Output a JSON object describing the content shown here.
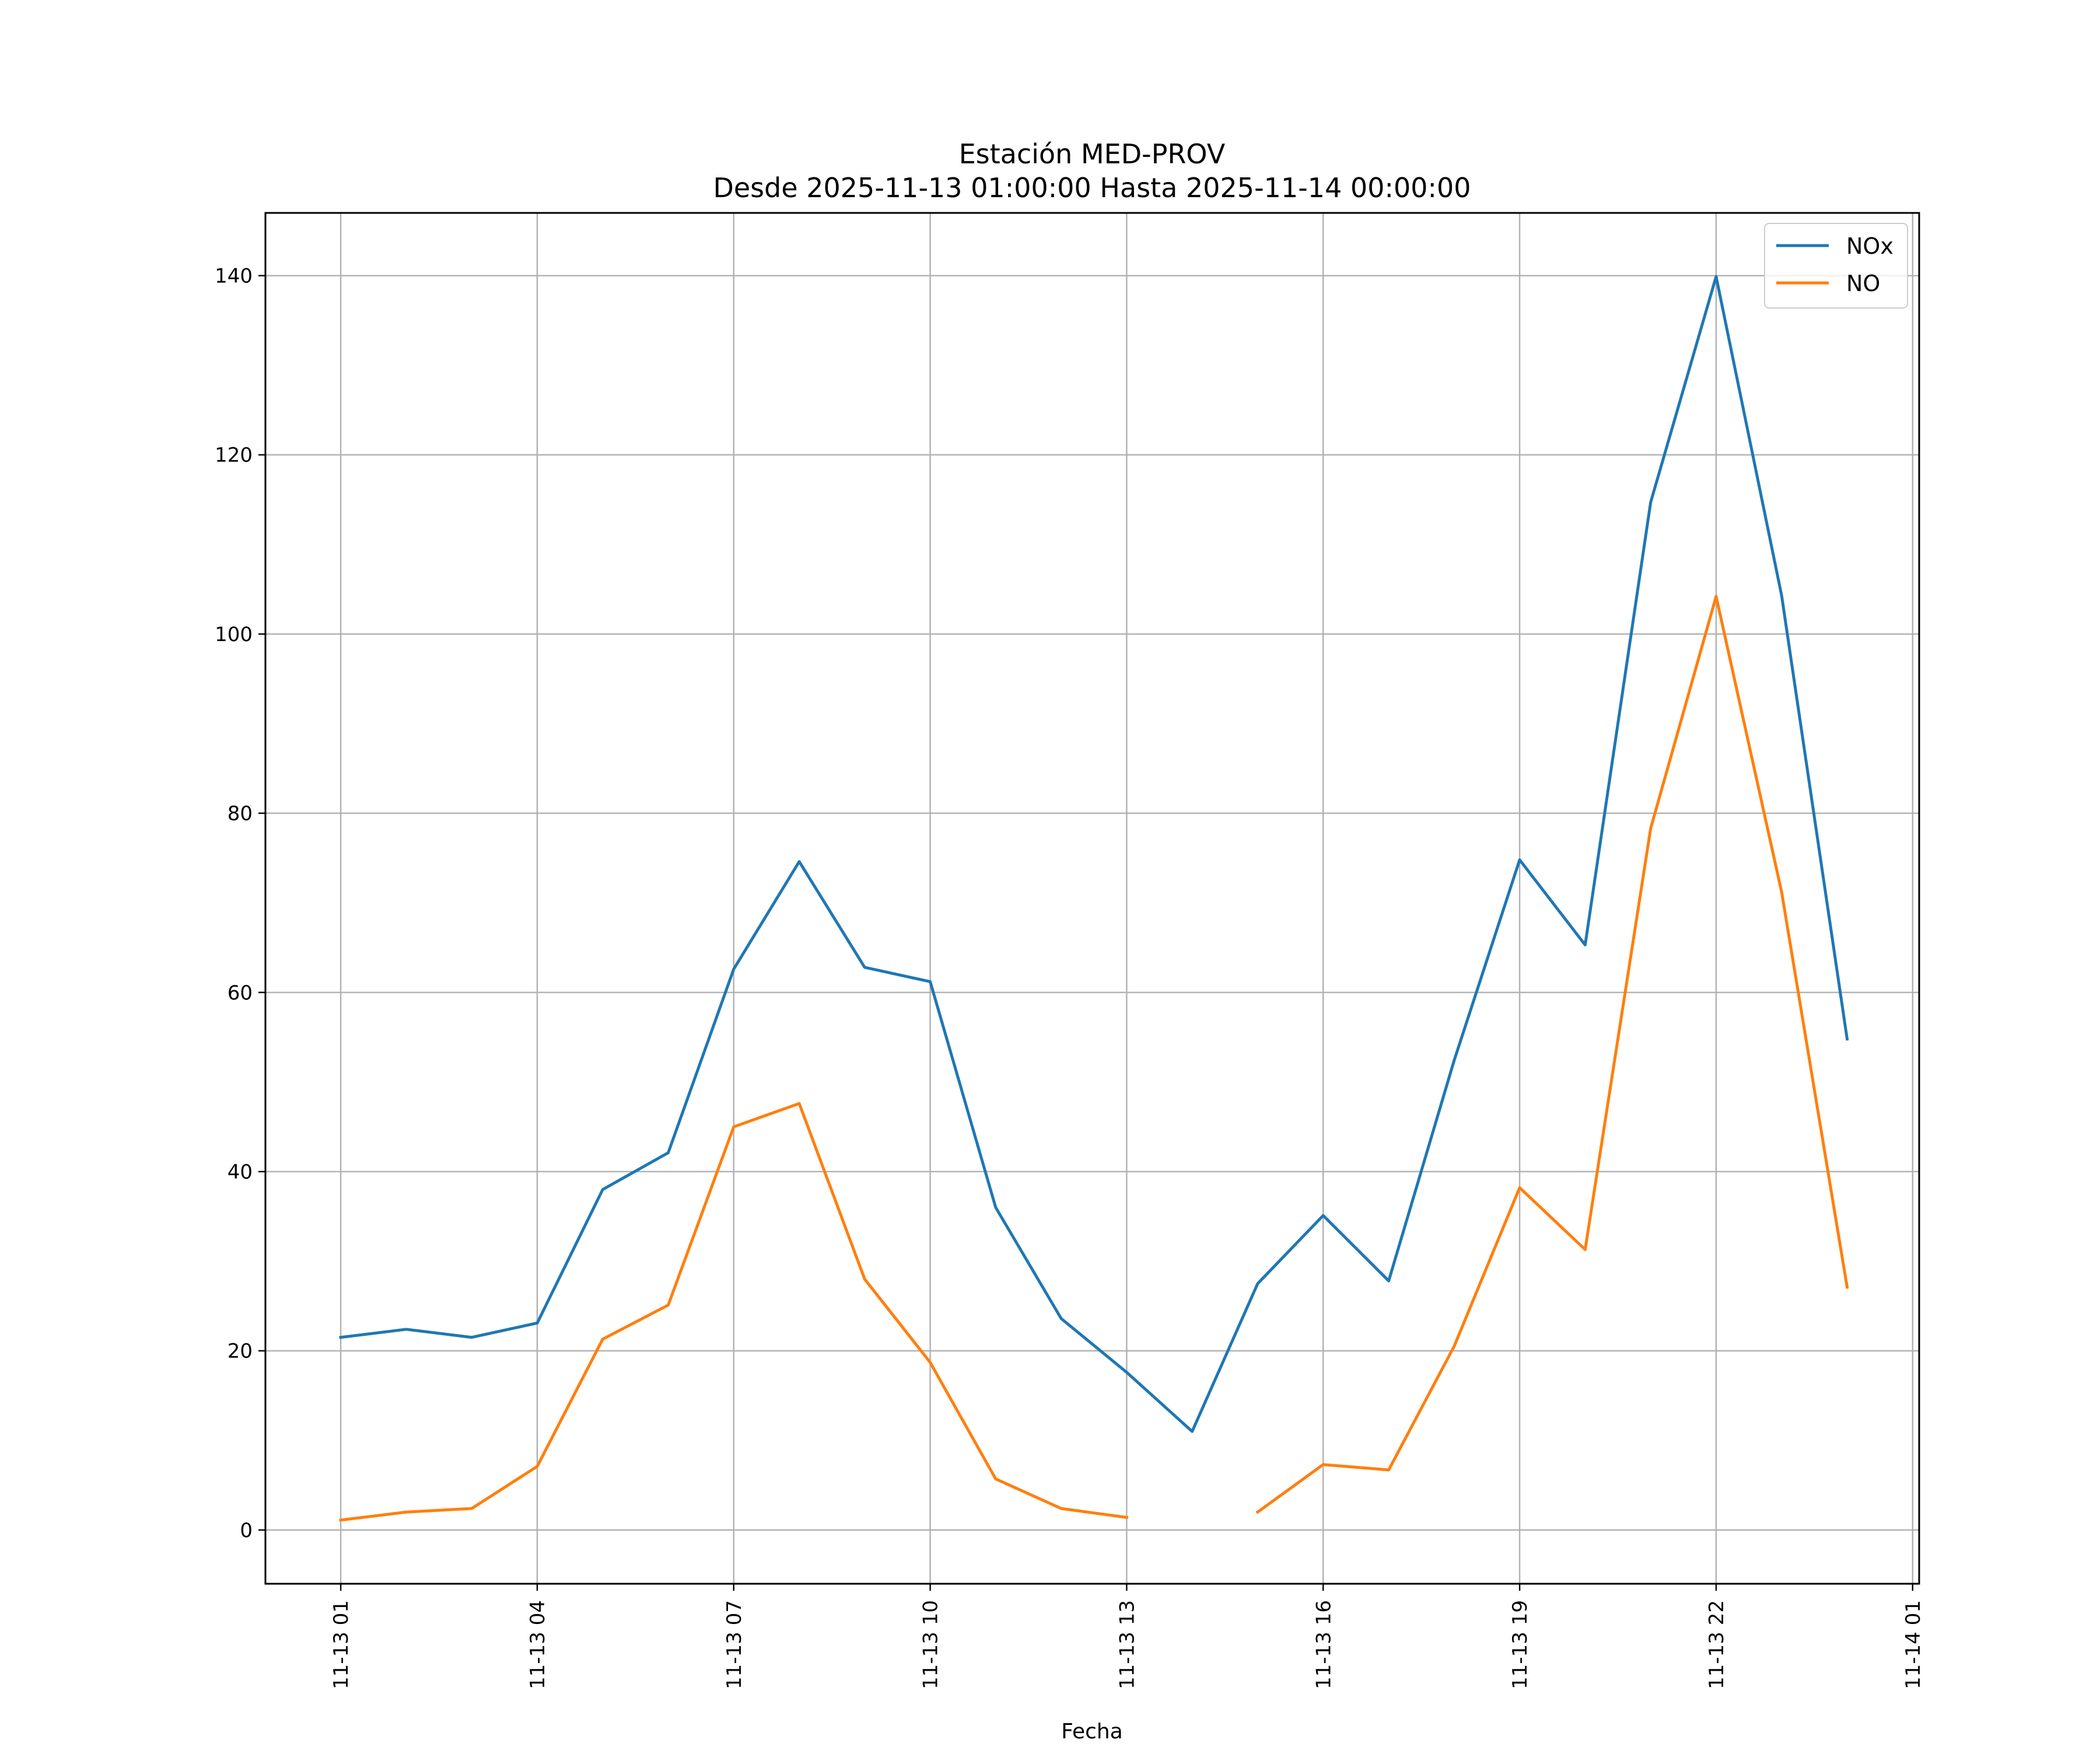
{
  "chart_data": {
    "type": "line",
    "title": "Estación MED-PROV",
    "subtitle": "Desde 2025-11-13 01:00:00 Hasta 2025-11-14 00:00:00",
    "xlabel": "Fecha",
    "ylabel": "",
    "ylim": [
      -6,
      147
    ],
    "yticks": [
      0,
      20,
      40,
      60,
      80,
      100,
      120,
      140
    ],
    "x_hours": [
      1,
      2,
      3,
      4,
      5,
      6,
      7,
      8,
      9,
      10,
      11,
      12,
      13,
      14,
      15,
      16,
      17,
      18,
      19,
      20,
      21,
      22,
      23,
      24
    ],
    "xlim_hours": [
      -0.15,
      25.1
    ],
    "xticks": [
      {
        "hour": 1,
        "label": "11-13 01"
      },
      {
        "hour": 4,
        "label": "11-13 04"
      },
      {
        "hour": 7,
        "label": "11-13 07"
      },
      {
        "hour": 10,
        "label": "11-13 10"
      },
      {
        "hour": 13,
        "label": "11-13 13"
      },
      {
        "hour": 16,
        "label": "11-13 16"
      },
      {
        "hour": 19,
        "label": "11-13 19"
      },
      {
        "hour": 22,
        "label": "11-13 22"
      },
      {
        "hour": 25,
        "label": "11-14 01"
      }
    ],
    "grid": true,
    "legend_position": "top-right",
    "series": [
      {
        "name": "NOx",
        "color": "#1f77b4",
        "values": [
          21.5,
          22.4,
          21.5,
          23.1,
          38.0,
          42.1,
          62.6,
          74.6,
          62.8,
          61.2,
          36.0,
          23.6,
          17.6,
          11.0,
          27.5,
          35.1,
          27.8,
          52.4,
          74.8,
          65.3,
          114.7,
          139.9,
          104.3,
          54.8
        ]
      },
      {
        "name": "NO",
        "color": "#ff7f0e",
        "values": [
          1.1,
          2.0,
          2.4,
          7.1,
          21.3,
          25.1,
          45.0,
          47.6,
          28.0,
          18.7,
          5.7,
          2.4,
          1.4,
          null,
          2.0,
          7.3,
          6.7,
          20.5,
          38.2,
          31.3,
          78.3,
          104.2,
          71.2,
          27.1
        ]
      }
    ]
  }
}
